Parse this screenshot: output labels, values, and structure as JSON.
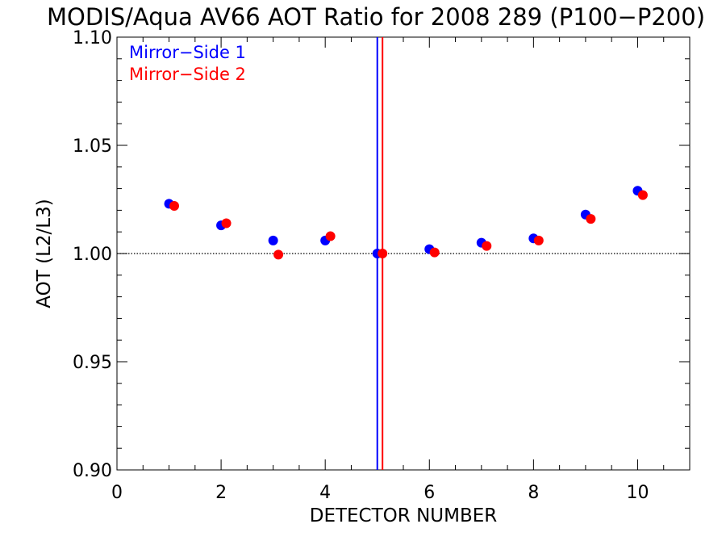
{
  "chart_data": {
    "type": "scatter",
    "title": "MODIS/Aqua AV66 AOT Ratio for 2008 289 (P100−P200)",
    "xlabel": "DETECTOR NUMBER",
    "ylabel": "AOT (L2/L3)",
    "xlim": [
      0,
      11
    ],
    "ylim": [
      0.9,
      1.1
    ],
    "xticks": [
      0,
      2,
      4,
      6,
      8,
      10
    ],
    "xtick_labels": [
      "0",
      "2",
      "4",
      "6",
      "8",
      "10"
    ],
    "yticks": [
      0.9,
      0.95,
      1.0,
      1.05,
      1.1
    ],
    "ytick_labels": [
      "0.90",
      "0.95",
      "1.00",
      "1.05",
      "1.10"
    ],
    "reference_line_y": 1.0,
    "legend_position": "top-left",
    "series": [
      {
        "name": "Mirror−Side 1",
        "color": "#0000ff",
        "x": [
          1,
          2,
          3,
          4,
          5,
          6,
          7,
          8,
          9,
          10
        ],
        "y": [
          1.023,
          1.013,
          1.006,
          1.006,
          1.0,
          1.002,
          1.005,
          1.007,
          1.018,
          1.029
        ],
        "vline_x": 5.0
      },
      {
        "name": "Mirror−Side 2",
        "color": "#ff0000",
        "x": [
          1.1,
          2.1,
          3.1,
          4.1,
          5.1,
          6.1,
          7.1,
          8.1,
          9.1,
          10.1
        ],
        "y": [
          1.022,
          1.014,
          0.9995,
          1.008,
          1.0,
          1.0005,
          1.0035,
          1.006,
          1.016,
          1.027
        ],
        "vline_x": 5.1
      }
    ]
  }
}
